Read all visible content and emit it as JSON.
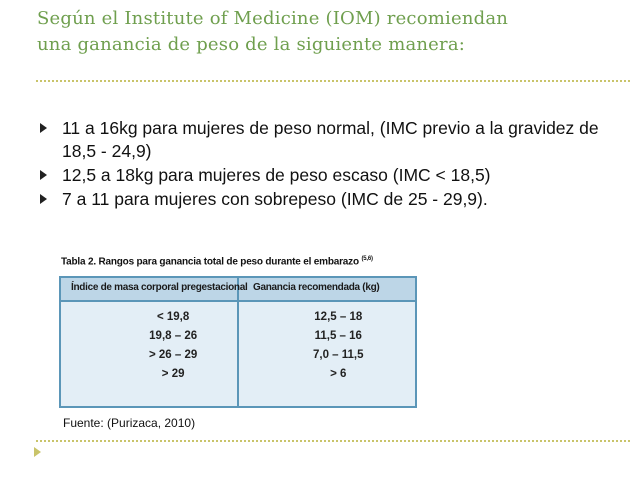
{
  "slide": {
    "title_lines": [
      "Según el Institute of Medicine (IOM) recomiendan",
      "una ganancia de peso de la siguiente manera:"
    ],
    "bullets": [
      "11 a 16kg para mujeres de peso normal, (IMC previo a la gravidez de 18,5 -  24,9)",
      "12,5 a 18kg para mujeres de peso escaso (IMC < 18,5)",
      "7 a 11 para mujeres con sobrepeso (IMC de 25 - 29,9)."
    ],
    "table": {
      "caption": "Tabla 2. Rangos para ganancia total de peso durante el embarazo",
      "caption_ref": "(5,6)",
      "headers": [
        "Índice de masa corporal pregestacional",
        "Ganancia recomendada (kg)"
      ],
      "rows": [
        [
          "< 19,8",
          "12,5 – 18"
        ],
        [
          "19,8 – 26",
          "11,5 – 16"
        ],
        [
          "> 26 – 29",
          "7,0 – 11,5"
        ],
        [
          "> 29",
          "> 6"
        ]
      ]
    },
    "source": "Fuente: (Purizaca, 2010)",
    "colors": {
      "title": "#6f9f4e",
      "divider": "#c9c46a",
      "table_border": "#5b96b8",
      "table_header": "#bdd6e7",
      "table_body": "#e3eef6"
    }
  }
}
